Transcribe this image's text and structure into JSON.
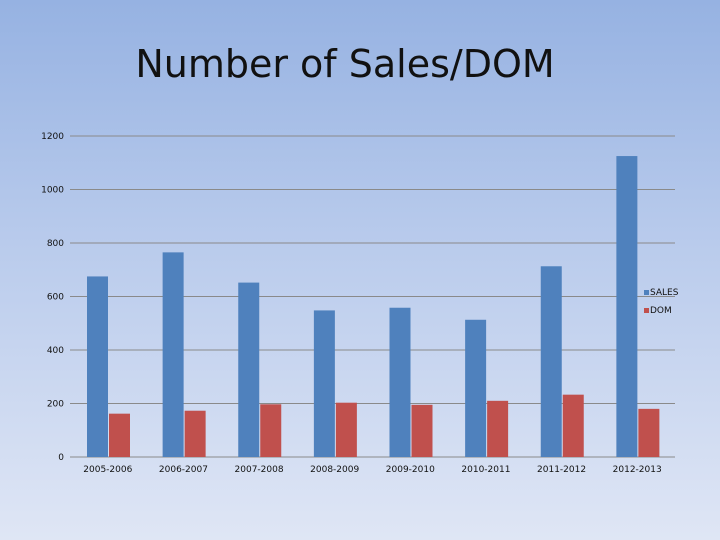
{
  "slide": {
    "title": "Number of Sales/DOM"
  },
  "chart_data": {
    "type": "bar",
    "title": "",
    "categories": [
      "2005-2006",
      "2006-2007",
      "2007-2008",
      "2008-2009",
      "2009-2010",
      "2010-2011",
      "2011-2012",
      "2012-2013"
    ],
    "series": [
      {
        "name": "SALES",
        "color": "#4f81bd",
        "values": [
          675,
          765,
          652,
          548,
          558,
          513,
          713,
          1125
        ]
      },
      {
        "name": "DOM",
        "color": "#c0504d",
        "values": [
          162,
          173,
          197,
          203,
          195,
          210,
          233,
          180
        ]
      }
    ],
    "yticks": [
      "0",
      "200",
      "400",
      "600",
      "800",
      "1000",
      "1200"
    ],
    "ylim": [
      0,
      1200
    ],
    "grid": true,
    "legend": "right"
  }
}
